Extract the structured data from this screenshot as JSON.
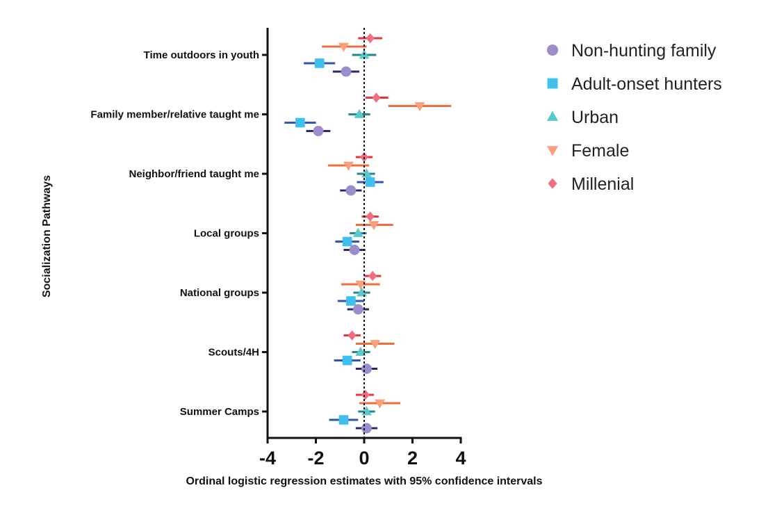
{
  "chart_data": {
    "type": "forest",
    "xlabel": "Ordinal logistic regression estimates with 95% confidence intervals",
    "ylabel": "Socialization  Pathways",
    "xlim": [
      -4,
      4
    ],
    "xticks": [
      "-4",
      "-2",
      "0",
      "2",
      "4"
    ],
    "reference_line": 0,
    "legend_position": "right",
    "categories": [
      "Time outdoors in youth",
      "Family member/relative taught me",
      "Neighbor/friend taught me",
      "Local groups",
      "National groups",
      "Scouts/4H",
      "Summer Camps"
    ],
    "series": [
      {
        "name": "Millenial",
        "marker": "diamond",
        "color": "#f26d7d",
        "line_color": "#e8343c",
        "estimates": [
          0.25,
          0.5,
          0.0,
          0.25,
          0.35,
          -0.5,
          0.05
        ],
        "ci_low": [
          -0.25,
          0.05,
          -0.35,
          -0.1,
          0.0,
          -0.85,
          -0.35
        ],
        "ci_high": [
          0.75,
          1.0,
          0.35,
          0.6,
          0.7,
          -0.15,
          0.4
        ]
      },
      {
        "name": "Female",
        "marker": "triangle-down",
        "color": "#f9a07a",
        "line_color": "#f26b3a",
        "estimates": [
          -0.85,
          2.3,
          -0.65,
          0.4,
          -0.15,
          0.45,
          0.65
        ],
        "ci_low": [
          -1.75,
          1.0,
          -1.5,
          -0.35,
          -0.95,
          -0.35,
          -0.2
        ],
        "ci_high": [
          0.1,
          3.6,
          0.2,
          1.2,
          0.65,
          1.25,
          1.5
        ]
      },
      {
        "name": "Urban",
        "marker": "triangle-up",
        "color": "#5bc8c9",
        "line_color": "#1d8a8f",
        "estimates": [
          0.0,
          -0.2,
          0.1,
          -0.25,
          -0.1,
          -0.15,
          0.1
        ],
        "ci_low": [
          -0.5,
          -0.65,
          -0.3,
          -0.6,
          -0.45,
          -0.5,
          -0.25
        ],
        "ci_high": [
          0.5,
          0.25,
          0.45,
          0.1,
          0.25,
          0.25,
          0.45
        ]
      },
      {
        "name": "Adult-onset hunters",
        "marker": "square",
        "color": "#40c0ee",
        "line_color": "#2f57b2",
        "estimates": [
          -1.85,
          -2.65,
          0.25,
          -0.7,
          -0.55,
          -0.7,
          -0.85
        ],
        "ci_low": [
          -2.5,
          -3.3,
          -0.3,
          -1.2,
          -1.1,
          -1.25,
          -1.45
        ],
        "ci_high": [
          -1.2,
          -2.0,
          0.8,
          -0.2,
          0.0,
          -0.15,
          -0.25
        ]
      },
      {
        "name": "Non-hunting family",
        "marker": "circle",
        "color": "#9b8ecb",
        "line_color": "#2c2a66",
        "estimates": [
          -0.75,
          -1.9,
          -0.55,
          -0.4,
          -0.25,
          0.1,
          0.1
        ],
        "ci_low": [
          -1.3,
          -2.4,
          -1.0,
          -0.85,
          -0.7,
          -0.35,
          -0.35
        ],
        "ci_high": [
          -0.2,
          -1.4,
          -0.1,
          0.05,
          0.2,
          0.55,
          0.55
        ]
      }
    ],
    "legend_order": [
      "Non-hunting family",
      "Adult-onset hunters",
      "Urban",
      "Female",
      "Millenial"
    ]
  }
}
